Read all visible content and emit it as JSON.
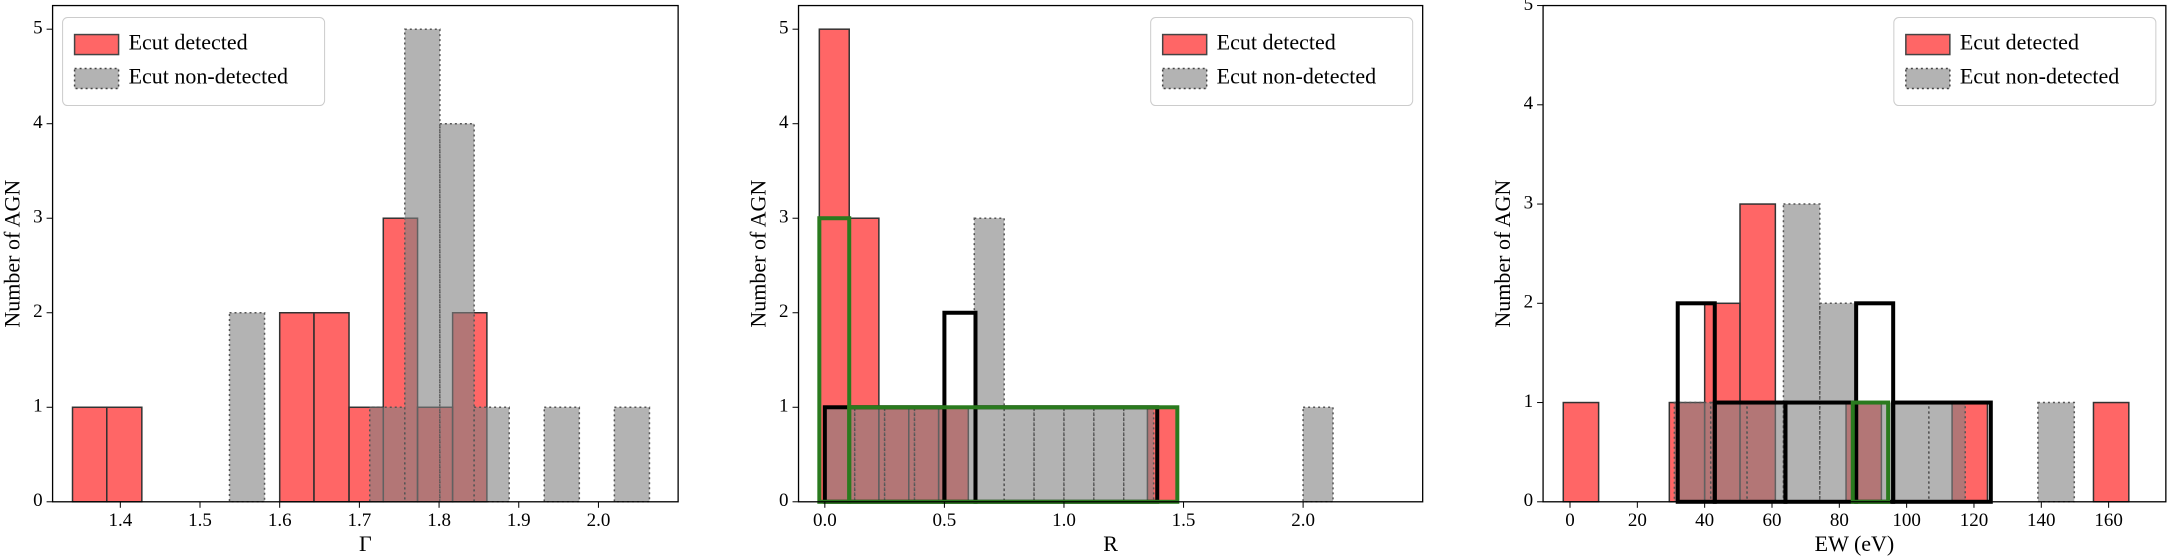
{
  "chart_data": [
    {
      "type": "histogram",
      "xlabel": "Γ",
      "ylabel": "Number of AGN",
      "legend": "upper left",
      "xlim": [
        1.315,
        2.1
      ],
      "ylim": [
        0,
        5.25
      ],
      "xticks": [
        1.4,
        1.5,
        1.6,
        1.7,
        1.8,
        1.9,
        {
          "value": 2.0,
          "label": "2.0"
        }
      ],
      "yticks": [
        0,
        1,
        2,
        3,
        4,
        5
      ],
      "series": [
        {
          "name": "Ecut detected",
          "color": "#ff0000",
          "linestyle": "solid",
          "bins": [
            1.34,
            1.383,
            1.427,
            1.47,
            1.513,
            1.557,
            1.6,
            1.643,
            1.687,
            1.73,
            1.773,
            1.817,
            1.86
          ],
          "values": [
            1,
            1,
            0,
            0,
            0,
            0,
            2,
            2,
            1,
            3,
            1,
            2
          ]
        },
        {
          "name": "Ecut non-detected",
          "color": "#808080",
          "linestyle": "dotted",
          "bins": [
            1.537,
            1.581,
            1.625,
            1.669,
            1.713,
            1.757,
            1.801,
            1.844,
            1.888,
            1.932,
            1.976,
            2.02,
            2.064
          ],
          "values": [
            2,
            0,
            0,
            0,
            1,
            5,
            4,
            1,
            0,
            1,
            0,
            1
          ]
        }
      ]
    },
    {
      "type": "histogram",
      "xlabel": "R",
      "ylabel": "Number of AGN",
      "legend": "upper right",
      "xlim": [
        -0.11,
        2.5
      ],
      "ylim": [
        0,
        5.25
      ],
      "xticks": [
        {
          "value": 0,
          "label": "0.0"
        },
        0.5,
        {
          "value": 1,
          "label": "1.0"
        },
        1.5,
        {
          "value": 2,
          "label": "2.0"
        }
      ],
      "yticks": [
        0,
        1,
        2,
        3,
        4,
        5
      ],
      "series": [
        {
          "name": "Ecut detected",
          "color": "#ff0000",
          "linestyle": "solid",
          "bins": [
            -0.023,
            0.102,
            0.226,
            0.351,
            0.476,
            0.6,
            0.725,
            0.85,
            0.975,
            1.1,
            1.224,
            1.349,
            1.474
          ],
          "values": [
            5,
            3,
            1,
            1,
            1,
            0,
            0,
            0,
            0,
            0,
            0,
            1
          ]
        },
        {
          "name": "Ecut non-detected",
          "color": "#808080",
          "linestyle": "dotted",
          "bins": [
            0,
            0.125,
            0.25,
            0.375,
            0.5,
            0.625,
            0.75,
            0.875,
            1,
            1.125,
            1.25,
            1.375,
            1.5,
            1.625,
            1.75,
            1.875,
            2,
            2.125
          ],
          "values": [
            1,
            1,
            1,
            1,
            1,
            3,
            1,
            1,
            1,
            1,
            1,
            0,
            0,
            0,
            0,
            0,
            1
          ]
        },
        {
          "color": "#000000",
          "linestyle": "step",
          "bins": [
            0,
            0.5,
            0.63,
            1.39,
            2.38
          ],
          "values": [
            1,
            2,
            1,
            0
          ]
        },
        {
          "color": "#2a7a1e",
          "linestyle": "step",
          "bins": [
            -0.023,
            0.102,
            1.474
          ],
          "values": [
            3,
            1
          ]
        }
      ]
    },
    {
      "type": "histogram",
      "xlabel": "EW (eV)",
      "ylabel": "Number of AGN",
      "legend": "upper right",
      "xlim": [
        -8,
        177
      ],
      "ylim": [
        0,
        5
      ],
      "xticks": [
        0,
        20,
        40,
        60,
        80,
        100,
        120,
        140,
        160
      ],
      "yticks": [
        0,
        1,
        2,
        3,
        4,
        5
      ],
      "series": [
        {
          "name": "Ecut detected",
          "color": "#ff0000",
          "linestyle": "solid",
          "bins": [
            -2,
            8.5,
            19,
            29.5,
            40,
            50.5,
            61,
            71.5,
            82,
            92.5,
            103,
            113.5,
            124,
            134.5,
            145,
            155.5,
            166
          ],
          "values": [
            1,
            0,
            0,
            1,
            2,
            3,
            0,
            0,
            1,
            0,
            0,
            1,
            0,
            0,
            0,
            1
          ]
        },
        {
          "name": "Ecut non-detected",
          "color": "#808080",
          "linestyle": "dotted",
          "bins": [
            31,
            41.8,
            52.6,
            63.4,
            74.2,
            85,
            95.8,
            106.6,
            117.4,
            128.2,
            139,
            149.8
          ],
          "values": [
            1,
            1,
            1,
            3,
            2,
            1,
            1,
            1,
            0,
            0,
            1
          ]
        },
        {
          "color": "#000000",
          "linestyle": "step",
          "bins": [
            8.5,
            32,
            43,
            64,
            85,
            96,
            125,
            170
          ],
          "values": [
            0,
            2,
            1,
            1,
            2,
            1,
            0
          ]
        },
        {
          "color": "#2a7a1e",
          "linestyle": "step",
          "bins": [
            84,
            94.5
          ],
          "values": [
            1
          ]
        }
      ]
    }
  ]
}
